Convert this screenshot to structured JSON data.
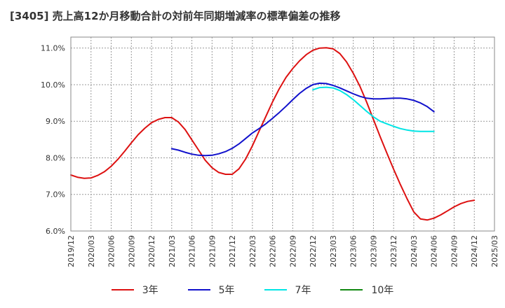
{
  "title": "[3405]  売上高12か月移動合計の対前年同期増減率の標準偏差の推移",
  "chart_data": {
    "type": "line",
    "title": "[3405]  売上高12か月移動合計の対前年同期増減率の標準偏差の推移",
    "xlabel": "",
    "ylabel": "",
    "x_ticks": [
      "2019/12",
      "2020/03",
      "2020/06",
      "2020/09",
      "2020/12",
      "2021/03",
      "2021/06",
      "2021/09",
      "2021/12",
      "2022/03",
      "2022/06",
      "2022/09",
      "2022/12",
      "2023/03",
      "2023/06",
      "2023/09",
      "2023/12",
      "2024/03",
      "2024/06",
      "2024/09",
      "2024/12",
      "2025/03"
    ],
    "y_ticks": [
      "6.0%",
      "7.0%",
      "8.0%",
      "9.0%",
      "10.0%",
      "11.0%"
    ],
    "ylim": [
      6.0,
      11.3
    ],
    "grid": true,
    "legend_position": "bottom",
    "series": [
      {
        "name": "3年",
        "color": "#dd1111",
        "start": "2019/12",
        "values": [
          7.53,
          7.47,
          7.44,
          7.45,
          7.52,
          7.62,
          7.77,
          7.96,
          8.18,
          8.41,
          8.63,
          8.81,
          8.96,
          9.05,
          9.1,
          9.1,
          8.98,
          8.77,
          8.49,
          8.21,
          7.93,
          7.73,
          7.6,
          7.55,
          7.55,
          7.7,
          7.97,
          8.33,
          8.73,
          9.13,
          9.53,
          9.89,
          10.2,
          10.44,
          10.65,
          10.82,
          10.94,
          11.0,
          11.01,
          10.98,
          10.85,
          10.62,
          10.31,
          9.95,
          9.52,
          9.05,
          8.58,
          8.13,
          7.69,
          7.27,
          6.88,
          6.52,
          6.33,
          6.3,
          6.35,
          6.44,
          6.55,
          6.66,
          6.75,
          6.81,
          6.84
        ]
      },
      {
        "name": "5年",
        "color": "#1111cc",
        "start": "2021/03",
        "values": [
          8.25,
          8.21,
          8.15,
          8.1,
          8.07,
          8.06,
          8.07,
          8.11,
          8.17,
          8.26,
          8.38,
          8.53,
          8.68,
          8.8,
          8.93,
          9.08,
          9.24,
          9.41,
          9.59,
          9.76,
          9.9,
          10.0,
          10.04,
          10.03,
          9.98,
          9.91,
          9.83,
          9.75,
          9.68,
          9.63,
          9.61,
          9.61,
          9.62,
          9.63,
          9.63,
          9.61,
          9.57,
          9.5,
          9.4,
          9.26
        ]
      },
      {
        "name": "7年",
        "color": "#00e5e5",
        "start": "2022/12",
        "values": [
          9.86,
          9.92,
          9.93,
          9.91,
          9.84,
          9.73,
          9.59,
          9.43,
          9.27,
          9.12,
          9.0,
          8.93,
          8.86,
          8.8,
          8.76,
          8.73,
          8.72,
          8.72,
          8.72
        ]
      },
      {
        "name": "10年",
        "color": "#118811",
        "start": "2024/12",
        "values": []
      }
    ]
  }
}
